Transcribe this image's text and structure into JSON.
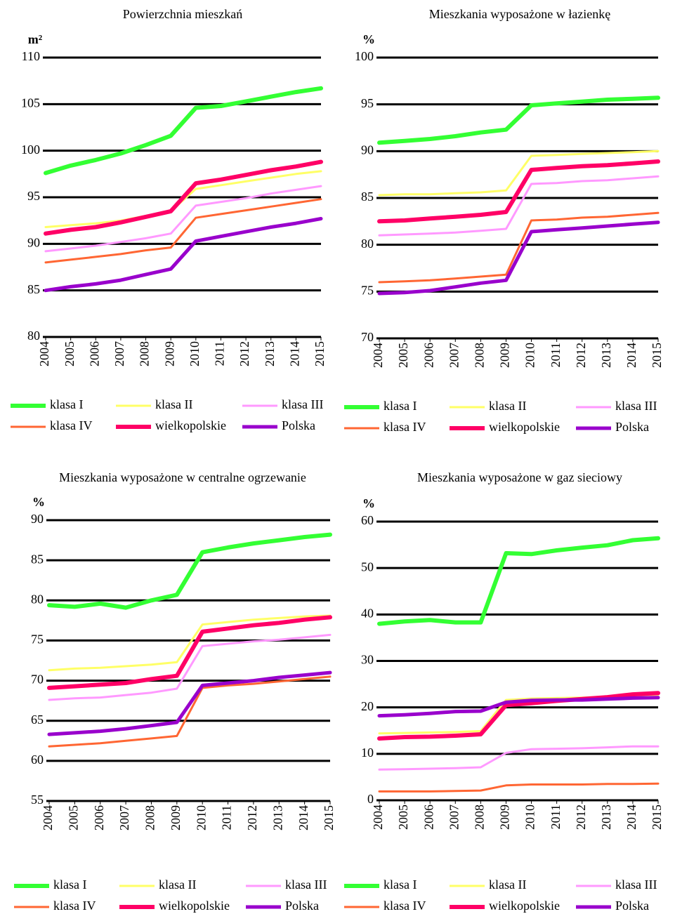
{
  "chart_data": [
    {
      "type": "line",
      "title": "Powierzchnia mieszkań",
      "ylabel": "m²",
      "categories": [
        "2004",
        "2005",
        "2006",
        "2007",
        "2008",
        "2009",
        "2010",
        "2011",
        "2012",
        "2013",
        "2014",
        "2015"
      ],
      "ylim": [
        80,
        110
      ],
      "yticks": [
        80,
        85,
        90,
        95,
        100,
        105,
        110
      ],
      "grid": true,
      "series": [
        {
          "name": "klasa I",
          "color": "#33ff33",
          "values": [
            97.6,
            98.4,
            99.0,
            99.7,
            100.6,
            101.6,
            104.6,
            104.8,
            105.3,
            105.8,
            106.3,
            106.7
          ]
        },
        {
          "name": "klasa II",
          "color": "#ffff66",
          "values": [
            91.8,
            92.0,
            92.2,
            92.5,
            93.0,
            93.5,
            95.9,
            96.3,
            96.7,
            97.1,
            97.5,
            97.8
          ]
        },
        {
          "name": "klasa III",
          "color": "#ff99ff",
          "values": [
            89.2,
            89.5,
            89.8,
            90.2,
            90.6,
            91.1,
            94.1,
            94.5,
            94.9,
            95.4,
            95.8,
            96.2
          ]
        },
        {
          "name": "klasa IV",
          "color": "#ff6633",
          "values": [
            88.0,
            88.3,
            88.6,
            88.9,
            89.3,
            89.6,
            92.8,
            93.2,
            93.6,
            94.0,
            94.4,
            94.8
          ]
        },
        {
          "name": "wielkopolskie",
          "color": "#ff0066",
          "values": [
            91.1,
            91.5,
            91.8,
            92.3,
            92.9,
            93.5,
            96.5,
            96.9,
            97.4,
            97.9,
            98.3,
            98.8
          ]
        },
        {
          "name": "Polska",
          "color": "#9900cc",
          "values": [
            85.0,
            85.4,
            85.7,
            86.1,
            86.7,
            87.3,
            90.3,
            90.8,
            91.3,
            91.8,
            92.2,
            92.7
          ]
        }
      ]
    },
    {
      "type": "line",
      "title": "Mieszkania wyposażone w łazienkę",
      "ylabel": "%",
      "categories": [
        "2004",
        "2005",
        "2006",
        "2007",
        "2008",
        "2009",
        "2010",
        "2011",
        "2012",
        "2013",
        "2014",
        "2015"
      ],
      "ylim": [
        70,
        100
      ],
      "yticks": [
        70,
        75,
        80,
        85,
        90,
        95,
        100
      ],
      "grid": true,
      "series": [
        {
          "name": "klasa I",
          "color": "#33ff33",
          "values": [
            90.9,
            91.1,
            91.3,
            91.6,
            92.0,
            92.3,
            94.9,
            95.1,
            95.3,
            95.5,
            95.6,
            95.7
          ]
        },
        {
          "name": "klasa II",
          "color": "#ffff66",
          "values": [
            85.3,
            85.4,
            85.4,
            85.5,
            85.6,
            85.8,
            89.5,
            89.6,
            89.7,
            89.8,
            89.9,
            90.0
          ]
        },
        {
          "name": "klasa III",
          "color": "#ff99ff",
          "values": [
            81.0,
            81.1,
            81.2,
            81.3,
            81.5,
            81.7,
            86.5,
            86.6,
            86.8,
            86.9,
            87.1,
            87.3
          ]
        },
        {
          "name": "klasa IV",
          "color": "#ff6633",
          "values": [
            76.0,
            76.1,
            76.2,
            76.4,
            76.6,
            76.8,
            82.6,
            82.7,
            82.9,
            83.0,
            83.2,
            83.4
          ]
        },
        {
          "name": "wielkopolskie",
          "color": "#ff0066",
          "values": [
            82.5,
            82.6,
            82.8,
            83.0,
            83.2,
            83.5,
            88.0,
            88.2,
            88.4,
            88.5,
            88.7,
            88.9
          ]
        },
        {
          "name": "Polska",
          "color": "#9900cc",
          "values": [
            74.8,
            74.9,
            75.1,
            75.5,
            75.9,
            76.2,
            81.4,
            81.6,
            81.8,
            82.0,
            82.2,
            82.4
          ]
        }
      ]
    },
    {
      "type": "line",
      "title": "Mieszkania wyposażone w centralne ogrzewanie",
      "ylabel": "%",
      "categories": [
        "2004",
        "2005",
        "2006",
        "2007",
        "2008",
        "2009",
        "2010",
        "2011",
        "2012",
        "2013",
        "2014",
        "2015"
      ],
      "ylim": [
        55,
        90
      ],
      "yticks": [
        55,
        60,
        65,
        70,
        75,
        80,
        85,
        90
      ],
      "grid": true,
      "series": [
        {
          "name": "klasa I",
          "color": "#33ff33",
          "values": [
            79.4,
            79.2,
            79.6,
            79.1,
            80.0,
            80.7,
            86.0,
            86.6,
            87.1,
            87.5,
            87.9,
            88.2
          ]
        },
        {
          "name": "klasa II",
          "color": "#ffff66",
          "values": [
            71.3,
            71.5,
            71.6,
            71.8,
            72.0,
            72.3,
            77.0,
            77.3,
            77.6,
            77.8,
            78.0,
            78.1
          ]
        },
        {
          "name": "klasa III",
          "color": "#ff99ff",
          "values": [
            67.6,
            67.8,
            67.9,
            68.2,
            68.5,
            69.0,
            74.3,
            74.6,
            74.9,
            75.1,
            75.4,
            75.7
          ]
        },
        {
          "name": "klasa IV",
          "color": "#ff6633",
          "values": [
            61.8,
            62.0,
            62.2,
            62.5,
            62.8,
            63.1,
            69.1,
            69.4,
            69.6,
            69.9,
            70.2,
            70.5
          ]
        },
        {
          "name": "wielkopolskie",
          "color": "#ff0066",
          "values": [
            69.1,
            69.3,
            69.5,
            69.7,
            70.2,
            70.6,
            76.1,
            76.5,
            76.9,
            77.2,
            77.6,
            77.9
          ]
        },
        {
          "name": "Polska",
          "color": "#9900cc",
          "values": [
            63.3,
            63.5,
            63.7,
            64.0,
            64.4,
            64.8,
            69.4,
            69.7,
            70.0,
            70.4,
            70.7,
            71.0
          ]
        }
      ]
    },
    {
      "type": "line",
      "title": "Mieszkania wyposażone w gaz sieciowy",
      "ylabel": "%",
      "categories": [
        "2004",
        "2005",
        "2006",
        "2007",
        "2008",
        "2009",
        "2010",
        "2011",
        "2012",
        "2013",
        "2014",
        "2015"
      ],
      "ylim": [
        0,
        60
      ],
      "yticks": [
        0,
        10,
        20,
        30,
        40,
        50,
        60
      ],
      "grid": true,
      "series": [
        {
          "name": "klasa I",
          "color": "#33ff33",
          "values": [
            38.0,
            38.5,
            38.8,
            38.3,
            38.3,
            53.2,
            53.0,
            53.8,
            54.4,
            54.9,
            56.0,
            56.4
          ]
        },
        {
          "name": "klasa II",
          "color": "#ffff66",
          "values": [
            14.4,
            14.5,
            14.6,
            14.7,
            14.9,
            21.6,
            21.9,
            22.0,
            22.1,
            22.3,
            22.5,
            22.7
          ]
        },
        {
          "name": "klasa III",
          "color": "#ff99ff",
          "values": [
            6.6,
            6.7,
            6.8,
            6.9,
            7.1,
            10.2,
            11.0,
            11.1,
            11.2,
            11.4,
            11.6,
            11.6
          ]
        },
        {
          "name": "klasa IV",
          "color": "#ff6633",
          "values": [
            1.9,
            1.9,
            1.9,
            2.0,
            2.1,
            3.2,
            3.4,
            3.4,
            3.4,
            3.5,
            3.5,
            3.6
          ]
        },
        {
          "name": "wielkopolskie",
          "color": "#ff0066",
          "values": [
            13.3,
            13.6,
            13.7,
            13.9,
            14.2,
            20.5,
            20.9,
            21.4,
            21.8,
            22.2,
            22.8,
            23.1
          ]
        },
        {
          "name": "Polska",
          "color": "#9900cc",
          "values": [
            18.2,
            18.4,
            18.7,
            19.1,
            19.2,
            21.1,
            21.5,
            21.6,
            21.6,
            21.8,
            22.0,
            22.1
          ]
        }
      ]
    }
  ]
}
